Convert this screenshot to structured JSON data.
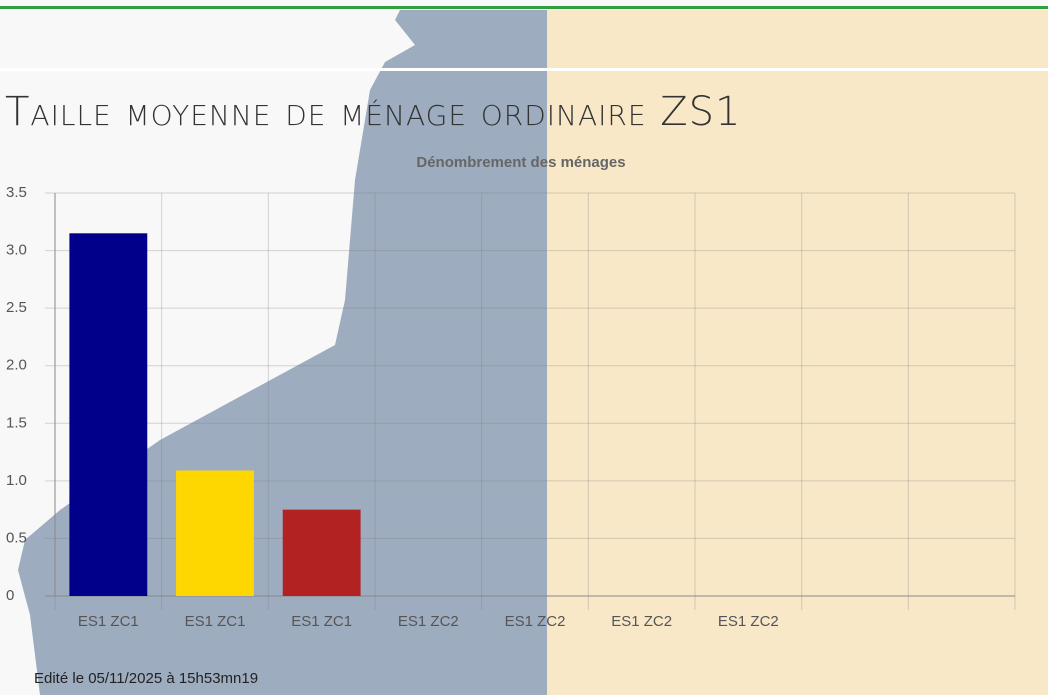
{
  "chart_data": {
    "type": "bar",
    "title": "Taille moyenne de ménage ordinaire ZS1",
    "subtitle": "Dénombrement des ménages",
    "categories": [
      "ES1 ZC1",
      "ES1 ZC1",
      "ES1 ZC1",
      "ES1 ZC2",
      "ES1 ZC2",
      "ES1 ZC2",
      "ES1 ZC2",
      null,
      null
    ],
    "values": [
      3.15,
      1.09,
      0.75,
      null,
      null,
      null,
      null,
      null,
      null
    ],
    "colors": [
      "#00008b",
      "#ffd700",
      "#b22222",
      null,
      null,
      null,
      null,
      null,
      null
    ],
    "ylim": [
      0,
      3.5
    ],
    "yticks": [
      0,
      0.5,
      {
        "value": 1,
        "label": "1.0"
      },
      1.5,
      {
        "value": 2,
        "label": "2.0"
      },
      2.5,
      {
        "value": 3,
        "label": "3.0"
      },
      3.5
    ],
    "grid": true,
    "footer": "Edité le 05/11/2025 à 15h53mn19"
  }
}
